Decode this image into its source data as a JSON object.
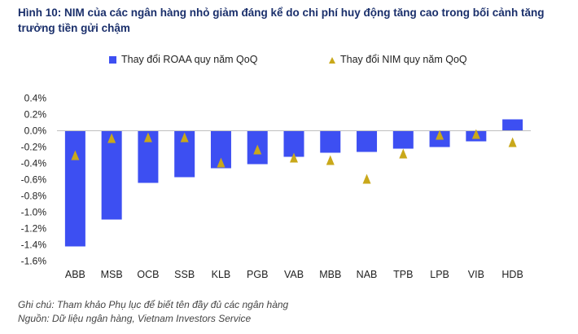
{
  "title": "Hình 10: NIM của các ngân hàng nhỏ giảm đáng kể do chi phí huy động tăng cao trong bối cảnh tăng trưởng tiền gửi chậm",
  "note": "Ghi chú: Tham khảo Phụ lục để biết tên đầy đủ các ngân hàng",
  "source": "Nguồn: Dữ liệu ngân hàng, Vietnam Investors Service",
  "chart_data": {
    "type": "bar",
    "categories": [
      "ABB",
      "MSB",
      "OCB",
      "SSB",
      "KLB",
      "PGB",
      "VAB",
      "MBB",
      "NAB",
      "TPB",
      "LPB",
      "VIB",
      "HDB"
    ],
    "series": [
      {
        "name": "Thay đổi ROAA quy năm QoQ",
        "type": "bar",
        "color": "#3d4ff2",
        "values": [
          -1.42,
          -1.09,
          -0.64,
          -0.57,
          -0.46,
          -0.41,
          -0.32,
          -0.27,
          -0.26,
          -0.22,
          -0.2,
          -0.13,
          0.14
        ]
      },
      {
        "name": "Thay đổi NIM quy năm QoQ",
        "type": "scatter",
        "marker": "triangle",
        "color": "#c9a81a",
        "values": [
          -0.3,
          -0.09,
          -0.08,
          -0.08,
          -0.39,
          -0.23,
          -0.33,
          -0.36,
          -0.59,
          -0.28,
          -0.05,
          -0.04,
          -0.14
        ]
      }
    ],
    "yticks": [
      "0.4%",
      "0.2%",
      "0.0%",
      "-0.2%",
      "-0.4%",
      "-0.6%",
      "-0.8%",
      "-1.0%",
      "-1.2%",
      "-1.4%",
      "-1.6%"
    ],
    "ytick_values": [
      0.4,
      0.2,
      0.0,
      -0.2,
      -0.4,
      -0.6,
      -0.8,
      -1.0,
      -1.2,
      -1.4,
      -1.6
    ],
    "ylim": [
      -1.6,
      0.4
    ],
    "legend_position": "top",
    "grid": false
  }
}
